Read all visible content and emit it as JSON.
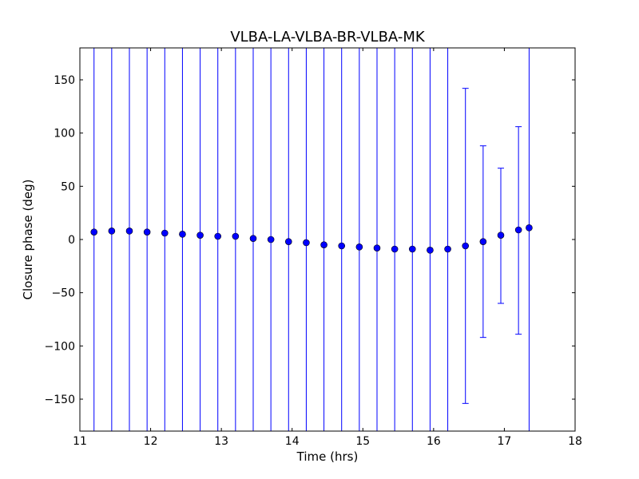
{
  "chart_data": {
    "type": "scatter",
    "title": "VLBA-LA-VLBA-BR-VLBA-MK",
    "xlabel": "Time (hrs)",
    "ylabel": "Closure phase (deg)",
    "xlim": [
      11,
      18
    ],
    "ylim": [
      -180,
      180
    ],
    "xticks": [
      11,
      12,
      13,
      14,
      15,
      16,
      17,
      18
    ],
    "yticks": [
      -150,
      -100,
      -50,
      0,
      50,
      100,
      150
    ],
    "xtick_labels": [
      "11",
      "12",
      "13",
      "14",
      "15",
      "16",
      "17",
      "18"
    ],
    "ytick_labels": [
      "−150",
      "−100",
      "−50",
      "0",
      "50",
      "100",
      "150"
    ],
    "grid": false,
    "legend": "none",
    "color": "#0000ff",
    "points": [
      {
        "x": 11.2,
        "y": 7,
        "err_low": -180,
        "err_high": 180
      },
      {
        "x": 11.45,
        "y": 8,
        "err_low": -180,
        "err_high": 180
      },
      {
        "x": 11.7,
        "y": 8,
        "err_low": -180,
        "err_high": 180
      },
      {
        "x": 11.95,
        "y": 7,
        "err_low": -180,
        "err_high": 180
      },
      {
        "x": 12.2,
        "y": 6,
        "err_low": -180,
        "err_high": 180
      },
      {
        "x": 12.45,
        "y": 5,
        "err_low": -180,
        "err_high": 180
      },
      {
        "x": 12.7,
        "y": 4,
        "err_low": -180,
        "err_high": 180
      },
      {
        "x": 12.95,
        "y": 3,
        "err_low": -180,
        "err_high": 180
      },
      {
        "x": 13.2,
        "y": 3,
        "err_low": -180,
        "err_high": 180
      },
      {
        "x": 13.45,
        "y": 1,
        "err_low": -180,
        "err_high": 180
      },
      {
        "x": 13.7,
        "y": 0,
        "err_low": -180,
        "err_high": 180
      },
      {
        "x": 13.95,
        "y": -2,
        "err_low": -180,
        "err_high": 180
      },
      {
        "x": 14.2,
        "y": -3,
        "err_low": -180,
        "err_high": 180
      },
      {
        "x": 14.45,
        "y": -5,
        "err_low": -180,
        "err_high": 180
      },
      {
        "x": 14.7,
        "y": -6,
        "err_low": -180,
        "err_high": 180
      },
      {
        "x": 14.95,
        "y": -7,
        "err_low": -180,
        "err_high": 180
      },
      {
        "x": 15.2,
        "y": -8,
        "err_low": -180,
        "err_high": 180
      },
      {
        "x": 15.45,
        "y": -9,
        "err_low": -180,
        "err_high": 180
      },
      {
        "x": 15.7,
        "y": -9,
        "err_low": -180,
        "err_high": 180
      },
      {
        "x": 15.95,
        "y": -10,
        "err_low": -180,
        "err_high": 180
      },
      {
        "x": 16.2,
        "y": -9,
        "err_low": -180,
        "err_high": 180
      },
      {
        "x": 16.45,
        "y": -6,
        "err_low": -154,
        "err_high": 142
      },
      {
        "x": 16.7,
        "y": -2,
        "err_low": -92,
        "err_high": 88
      },
      {
        "x": 16.95,
        "y": 4,
        "err_low": -60,
        "err_high": 67
      },
      {
        "x": 17.2,
        "y": 9,
        "err_low": -89,
        "err_high": 106
      },
      {
        "x": 17.35,
        "y": 11,
        "err_low": -180,
        "err_high": 180
      }
    ]
  }
}
